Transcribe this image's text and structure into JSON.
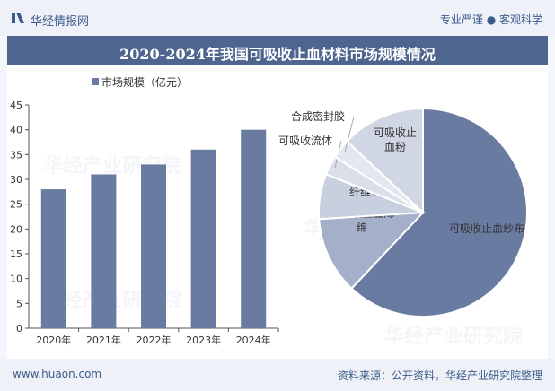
{
  "header": {
    "brand_name": "华经情报网",
    "slogan": "专业严谨 ● 客观科学",
    "logo_icon": "hj-logo-icon"
  },
  "title": "2020-2024年我国可吸收止血材料市场规模情况",
  "footer": {
    "url": "www.huaon.com",
    "source": "资料来源：公开资料，华经产业研究院整理"
  },
  "watermark": "华经产业研究院",
  "colors": {
    "bar": "#6a7ba2",
    "title_bg": "#4e6590",
    "brand": "#3c5a8a"
  },
  "chart_data": [
    {
      "type": "bar",
      "legend": "市场规模（亿元）",
      "categories": [
        "2020年",
        "2021年",
        "2022年",
        "2023年",
        "2024年"
      ],
      "values": [
        28,
        31,
        33,
        36,
        40
      ],
      "ylim": [
        0,
        45
      ],
      "yticks": [
        0,
        5,
        10,
        15,
        20,
        25,
        30,
        35,
        40,
        45
      ],
      "grid": false
    },
    {
      "type": "pie",
      "labels": [
        "可吸收止血纱布",
        "可吸收止血海绵",
        "纤维蛋白胶",
        "可吸收流体",
        "合成密封胶",
        "可吸收止血粉"
      ],
      "values": [
        62,
        12,
        7,
        3,
        3,
        13
      ],
      "colors": [
        "#6a7ba2",
        "#a4afc9",
        "#c8cfde",
        "#dadfe9",
        "#e3e7ef",
        "#d0d6e3"
      ]
    }
  ]
}
